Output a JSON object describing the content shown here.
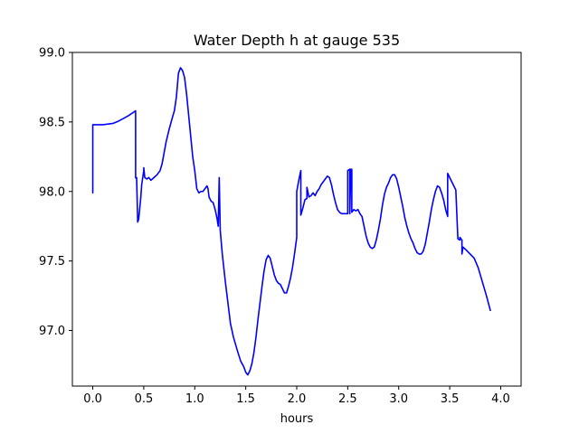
{
  "chart_data": {
    "type": "line",
    "title": "Water Depth h at gauge 535",
    "xlabel": "hours",
    "ylabel": "",
    "xlim": [
      -0.2,
      4.2
    ],
    "ylim": [
      96.6,
      99.0
    ],
    "xticks": [
      0.0,
      0.5,
      1.0,
      1.5,
      2.0,
      2.5,
      3.0,
      3.5,
      4.0
    ],
    "xtick_labels": [
      "0.0",
      "0.5",
      "1.0",
      "1.5",
      "2.0",
      "2.5",
      "3.0",
      "3.5",
      "4.0"
    ],
    "yticks": [
      97.0,
      97.5,
      98.0,
      98.5,
      99.0
    ],
    "ytick_labels": [
      "97.0",
      "97.5",
      "98.0",
      "98.5",
      "99.0"
    ],
    "grid": false,
    "series": [
      {
        "color": "#0000ff",
        "points": [
          [
            0.0,
            98.0
          ],
          [
            0.0,
            97.99
          ],
          [
            0.0,
            98.48
          ],
          [
            0.05,
            98.48
          ],
          [
            0.1,
            98.48
          ],
          [
            0.15,
            98.485
          ],
          [
            0.2,
            98.49
          ],
          [
            0.25,
            98.505
          ],
          [
            0.3,
            98.525
          ],
          [
            0.35,
            98.545
          ],
          [
            0.4,
            98.57
          ],
          [
            0.42,
            98.58
          ],
          [
            0.42,
            98.1
          ],
          [
            0.43,
            98.09
          ],
          [
            0.43,
            98.1
          ],
          [
            0.44,
            97.8
          ],
          [
            0.44,
            97.78
          ],
          [
            0.45,
            97.8
          ],
          [
            0.47,
            97.95
          ],
          [
            0.48,
            98.05
          ],
          [
            0.5,
            98.15
          ],
          [
            0.5,
            98.17
          ],
          [
            0.51,
            98.1
          ],
          [
            0.53,
            98.09
          ],
          [
            0.55,
            98.1
          ],
          [
            0.57,
            98.08
          ],
          [
            0.6,
            98.1
          ],
          [
            0.63,
            98.12
          ],
          [
            0.66,
            98.15
          ],
          [
            0.68,
            98.2
          ],
          [
            0.7,
            98.28
          ],
          [
            0.72,
            98.36
          ],
          [
            0.75,
            98.45
          ],
          [
            0.78,
            98.53
          ],
          [
            0.8,
            98.58
          ],
          [
            0.82,
            98.68
          ],
          [
            0.84,
            98.85
          ],
          [
            0.86,
            98.89
          ],
          [
            0.88,
            98.87
          ],
          [
            0.9,
            98.82
          ],
          [
            0.92,
            98.7
          ],
          [
            0.94,
            98.55
          ],
          [
            0.96,
            98.4
          ],
          [
            0.98,
            98.25
          ],
          [
            1.0,
            98.15
          ],
          [
            1.02,
            98.02
          ],
          [
            1.04,
            97.99
          ],
          [
            1.06,
            98.0
          ],
          [
            1.08,
            98.0
          ],
          [
            1.1,
            98.02
          ],
          [
            1.12,
            98.04
          ],
          [
            1.13,
            98.02
          ],
          [
            1.14,
            97.96
          ],
          [
            1.16,
            97.93
          ],
          [
            1.18,
            97.92
          ],
          [
            1.2,
            97.87
          ],
          [
            1.22,
            97.8
          ],
          [
            1.23,
            97.75
          ],
          [
            1.24,
            98.1
          ],
          [
            1.24,
            98.1
          ],
          [
            1.25,
            97.72
          ],
          [
            1.27,
            97.55
          ],
          [
            1.3,
            97.35
          ],
          [
            1.32,
            97.23
          ],
          [
            1.35,
            97.05
          ],
          [
            1.38,
            96.95
          ],
          [
            1.42,
            96.85
          ],
          [
            1.45,
            96.78
          ],
          [
            1.48,
            96.74
          ],
          [
            1.5,
            96.7
          ],
          [
            1.52,
            96.68
          ],
          [
            1.54,
            96.71
          ],
          [
            1.56,
            96.76
          ],
          [
            1.58,
            96.84
          ],
          [
            1.6,
            96.95
          ],
          [
            1.62,
            97.08
          ],
          [
            1.64,
            97.2
          ],
          [
            1.66,
            97.32
          ],
          [
            1.68,
            97.43
          ],
          [
            1.7,
            97.51
          ],
          [
            1.72,
            97.54
          ],
          [
            1.74,
            97.52
          ],
          [
            1.76,
            97.46
          ],
          [
            1.78,
            97.4
          ],
          [
            1.8,
            97.36
          ],
          [
            1.82,
            97.34
          ],
          [
            1.84,
            97.33
          ],
          [
            1.86,
            97.3
          ],
          [
            1.88,
            97.27
          ],
          [
            1.9,
            97.27
          ],
          [
            1.92,
            97.32
          ],
          [
            1.94,
            97.38
          ],
          [
            1.96,
            97.46
          ],
          [
            1.98,
            97.56
          ],
          [
            2.0,
            97.67
          ],
          [
            2.0,
            98.0
          ],
          [
            2.02,
            98.08
          ],
          [
            2.04,
            98.15
          ],
          [
            2.04,
            97.83
          ],
          [
            2.06,
            97.88
          ],
          [
            2.08,
            97.94
          ],
          [
            2.1,
            97.95
          ],
          [
            2.1,
            98.03
          ],
          [
            2.12,
            97.96
          ],
          [
            2.14,
            97.97
          ],
          [
            2.16,
            97.99
          ],
          [
            2.18,
            97.97
          ],
          [
            2.2,
            98.0
          ],
          [
            2.22,
            98.02
          ],
          [
            2.24,
            98.05
          ],
          [
            2.26,
            98.07
          ],
          [
            2.28,
            98.09
          ],
          [
            2.3,
            98.11
          ],
          [
            2.32,
            98.1
          ],
          [
            2.34,
            98.05
          ],
          [
            2.36,
            97.98
          ],
          [
            2.38,
            97.92
          ],
          [
            2.4,
            97.87
          ],
          [
            2.42,
            97.85
          ],
          [
            2.44,
            97.84
          ],
          [
            2.46,
            97.84
          ],
          [
            2.48,
            97.84
          ],
          [
            2.5,
            97.84
          ],
          [
            2.5,
            98.15
          ],
          [
            2.52,
            98.16
          ],
          [
            2.52,
            97.84
          ],
          [
            2.53,
            98.16
          ],
          [
            2.54,
            98.16
          ],
          [
            2.54,
            97.85
          ],
          [
            2.56,
            97.87
          ],
          [
            2.58,
            97.86
          ],
          [
            2.6,
            97.87
          ],
          [
            2.62,
            97.84
          ],
          [
            2.64,
            97.82
          ],
          [
            2.66,
            97.75
          ],
          [
            2.68,
            97.68
          ],
          [
            2.7,
            97.63
          ],
          [
            2.72,
            97.6
          ],
          [
            2.74,
            97.59
          ],
          [
            2.76,
            97.6
          ],
          [
            2.78,
            97.65
          ],
          [
            2.8,
            97.72
          ],
          [
            2.82,
            97.8
          ],
          [
            2.84,
            97.9
          ],
          [
            2.86,
            97.98
          ],
          [
            2.88,
            98.03
          ],
          [
            2.9,
            98.06
          ],
          [
            2.92,
            98.1
          ],
          [
            2.94,
            98.12
          ],
          [
            2.96,
            98.12
          ],
          [
            2.98,
            98.09
          ],
          [
            3.0,
            98.03
          ],
          [
            3.02,
            97.96
          ],
          [
            3.04,
            97.89
          ],
          [
            3.06,
            97.81
          ],
          [
            3.08,
            97.75
          ],
          [
            3.1,
            97.7
          ],
          [
            3.12,
            97.66
          ],
          [
            3.14,
            97.63
          ],
          [
            3.16,
            97.59
          ],
          [
            3.18,
            97.56
          ],
          [
            3.2,
            97.55
          ],
          [
            3.22,
            97.55
          ],
          [
            3.24,
            97.57
          ],
          [
            3.26,
            97.62
          ],
          [
            3.28,
            97.7
          ],
          [
            3.3,
            97.78
          ],
          [
            3.32,
            97.87
          ],
          [
            3.34,
            97.94
          ],
          [
            3.36,
            98.0
          ],
          [
            3.38,
            98.04
          ],
          [
            3.4,
            98.03
          ],
          [
            3.42,
            97.99
          ],
          [
            3.44,
            97.94
          ],
          [
            3.46,
            97.87
          ],
          [
            3.48,
            97.82
          ],
          [
            3.48,
            98.13
          ],
          [
            3.5,
            98.1
          ],
          [
            3.52,
            98.07
          ],
          [
            3.54,
            98.04
          ],
          [
            3.56,
            98.01
          ],
          [
            3.58,
            97.66
          ],
          [
            3.6,
            97.65
          ],
          [
            3.6,
            97.67
          ],
          [
            3.62,
            97.65
          ],
          [
            3.62,
            97.55
          ],
          [
            3.63,
            97.6
          ],
          [
            3.66,
            97.58
          ],
          [
            3.7,
            97.55
          ],
          [
            3.74,
            97.52
          ],
          [
            3.78,
            97.45
          ],
          [
            3.82,
            97.35
          ],
          [
            3.86,
            97.25
          ],
          [
            3.9,
            97.14
          ]
        ]
      }
    ]
  }
}
